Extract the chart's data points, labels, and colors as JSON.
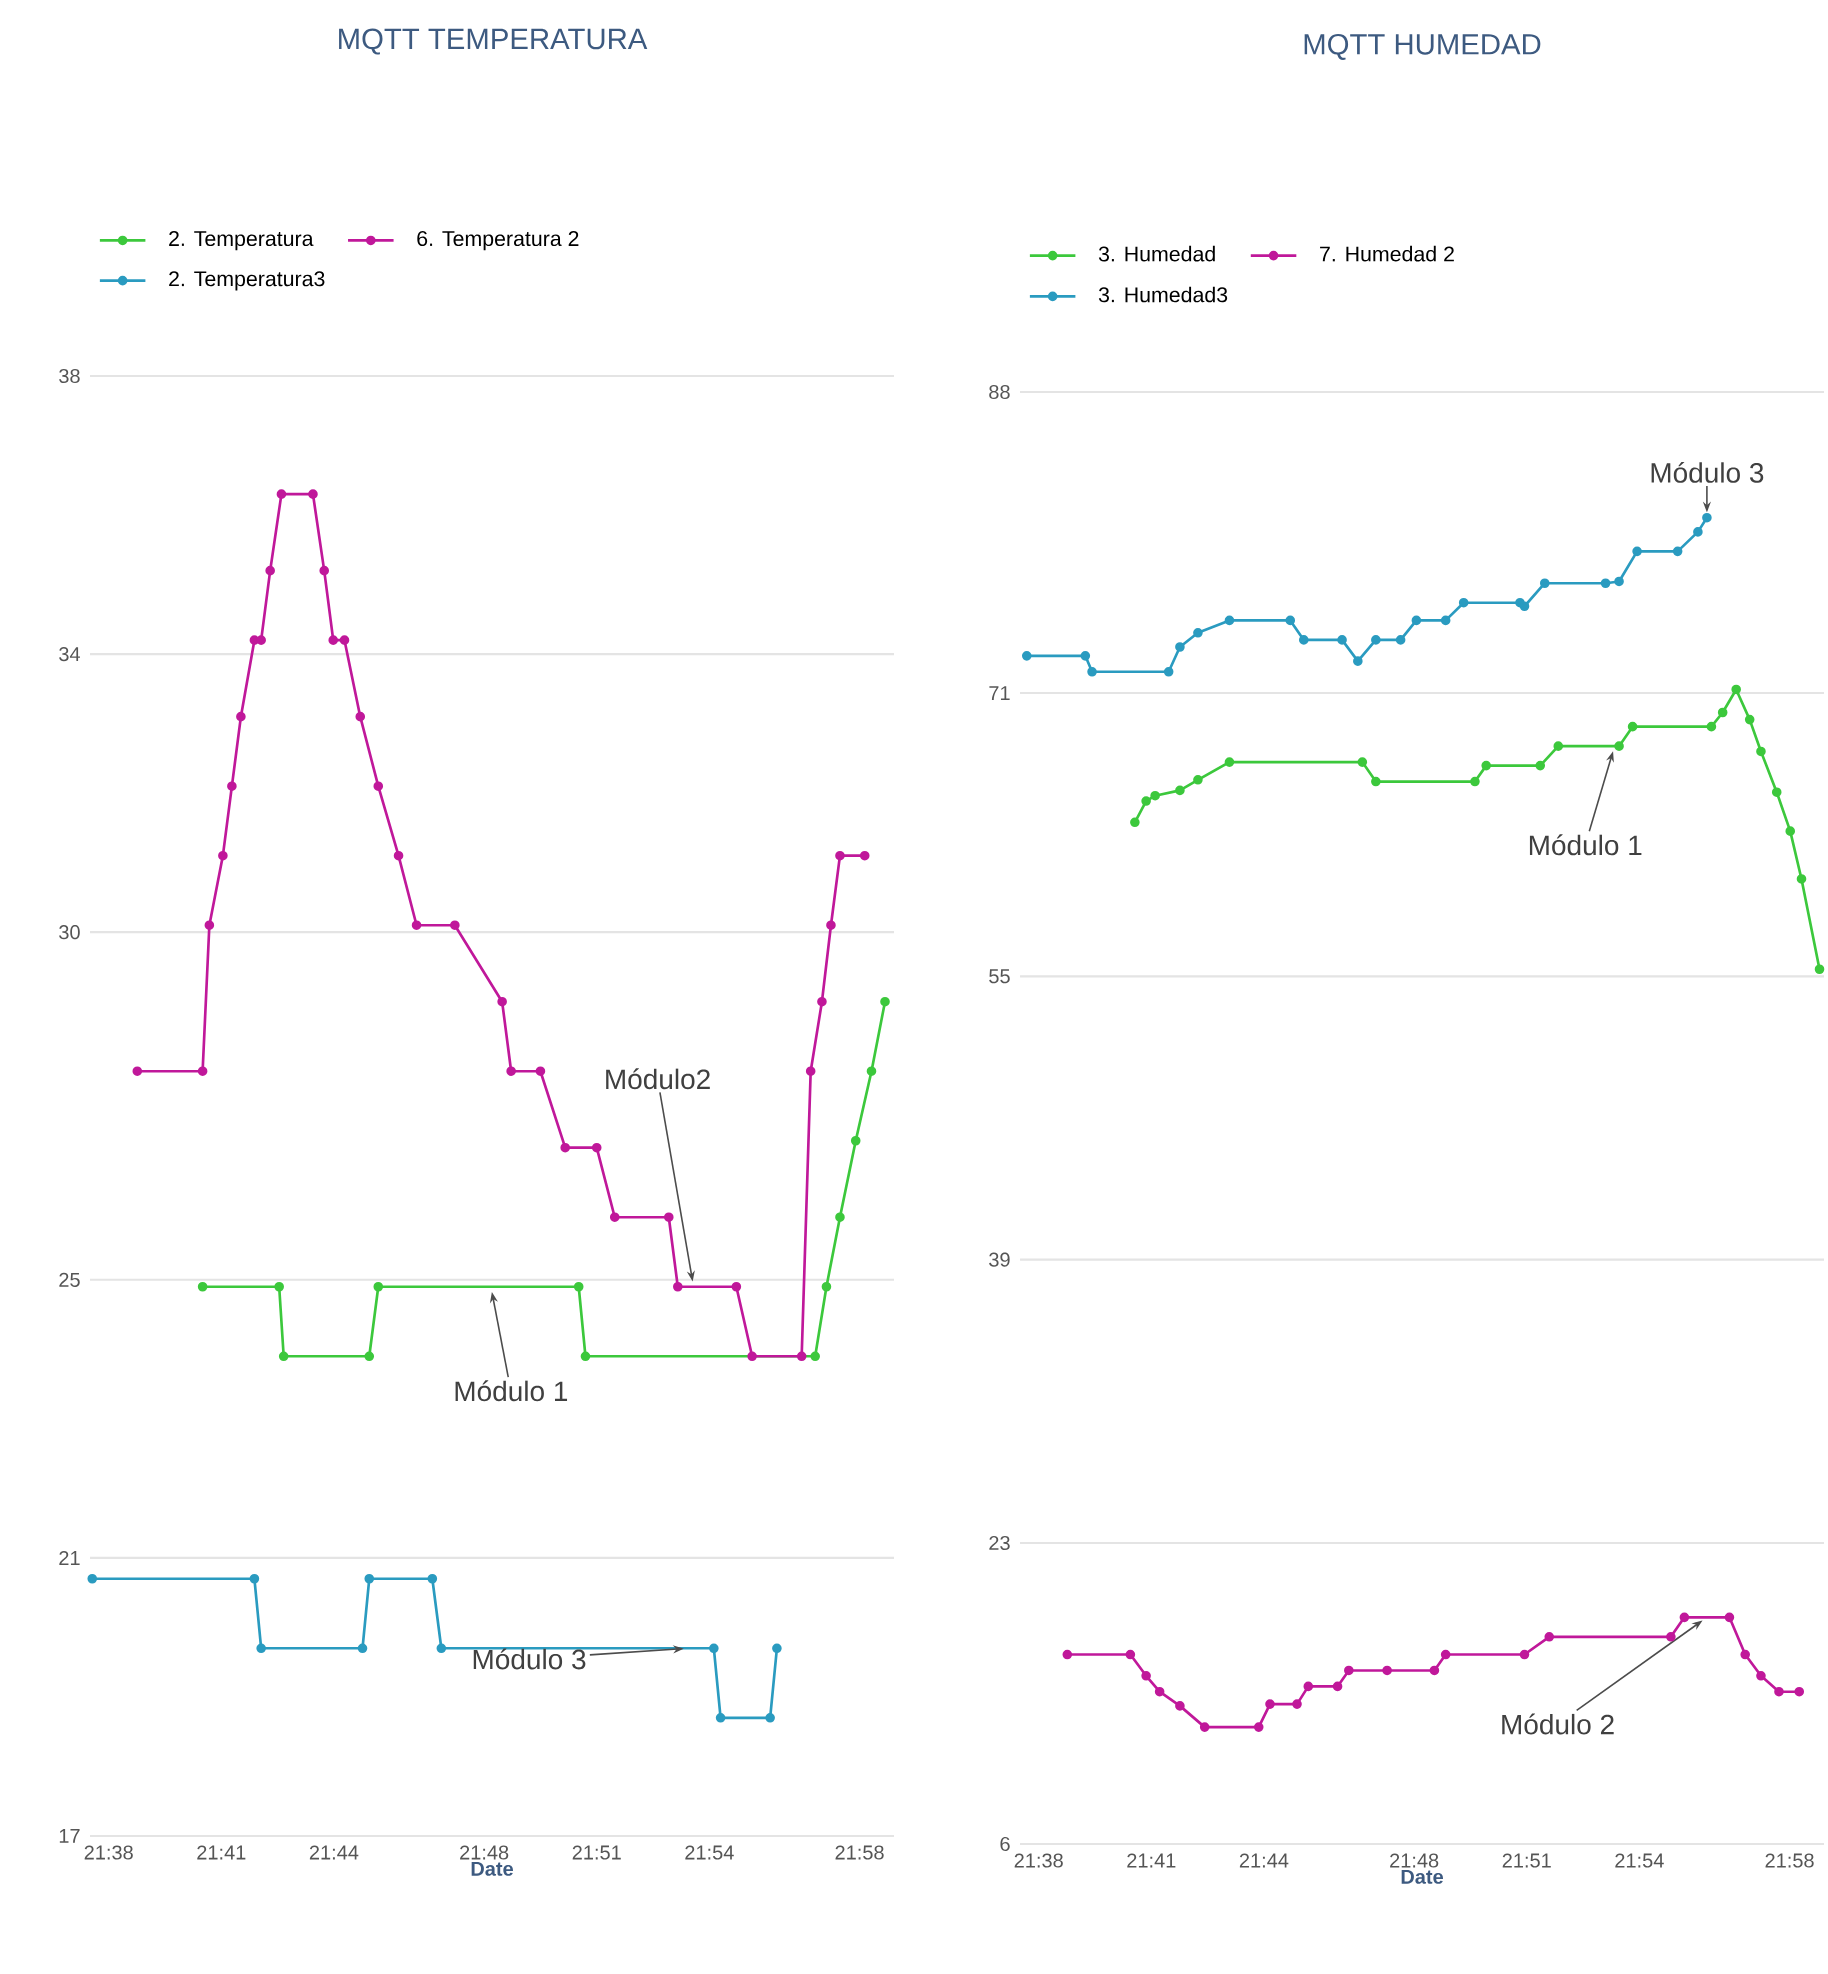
{
  "chart_data": [
    {
      "type": "line",
      "title": "MQTT TEMPERATURA",
      "xlabel": "Date",
      "legend": "top left",
      "grid": "y",
      "marker": "circle",
      "line_style": "solid",
      "xlim": [
        21.625,
        21.982
      ],
      "xticks": [
        {
          "value": 21.6333,
          "label": "21:38"
        },
        {
          "value": 21.6833,
          "label": "21:41"
        },
        {
          "value": 21.7333,
          "label": "21:44"
        },
        {
          "value": 21.8,
          "label": "21:48"
        },
        {
          "value": 21.85,
          "label": "21:51"
        },
        {
          "value": 21.9,
          "label": "21:54"
        },
        {
          "value": 21.9667,
          "label": "21:58"
        }
      ],
      "ylim": [
        17,
        38
      ],
      "yticks": [
        17,
        21,
        25,
        30,
        34,
        38
      ],
      "series": [
        {
          "name": "2. Temperatura",
          "color": "#3cc83c",
          "x": [
            21.675,
            21.709,
            21.711,
            21.749,
            21.753,
            21.842,
            21.845,
            21.947,
            21.952,
            21.958,
            21.965,
            21.972,
            21.978
          ],
          "values": [
            24.9,
            24.9,
            23.9,
            23.9,
            24.9,
            24.9,
            23.9,
            23.9,
            24.9,
            25.9,
            27.0,
            28.0,
            29.0
          ]
        },
        {
          "name": "6. Temperatura 2",
          "color": "#c0189a",
          "x": [
            21.646,
            21.675,
            21.678,
            21.684,
            21.688,
            21.692,
            21.698,
            21.701,
            21.705,
            21.71,
            21.724,
            21.729,
            21.733,
            21.738,
            21.745,
            21.753,
            21.762,
            21.77,
            21.787,
            21.808,
            21.812,
            21.825,
            21.836,
            21.85,
            21.858,
            21.882,
            21.886,
            21.912,
            21.919,
            21.941,
            21.945,
            21.95,
            21.954,
            21.958,
            21.969
          ],
          "values": [
            28.0,
            28.0,
            30.1,
            31.1,
            32.1,
            33.1,
            34.2,
            34.2,
            35.2,
            36.3,
            36.3,
            35.2,
            34.2,
            34.2,
            33.1,
            32.1,
            31.1,
            30.1,
            30.1,
            29.0,
            28.0,
            28.0,
            26.9,
            26.9,
            25.9,
            25.9,
            24.9,
            24.9,
            23.9,
            23.9,
            28.0,
            29.0,
            30.1,
            31.1,
            31.1
          ]
        },
        {
          "name": "2. Temperatura3",
          "color": "#2a9bc0",
          "x": [
            21.626,
            21.698,
            21.701,
            21.746,
            21.749,
            21.777,
            21.781,
            21.902,
            21.905,
            21.927,
            21.93
          ],
          "values": [
            20.7,
            20.7,
            19.7,
            19.7,
            20.7,
            20.7,
            19.7,
            19.7,
            18.7,
            18.7,
            19.7
          ]
        }
      ],
      "annotations": [
        {
          "text": "Módulo2",
          "x": 21.893,
          "y": 24.9
        },
        {
          "text": "Módulo 1",
          "x": 21.803,
          "y": 24.9
        },
        {
          "text": "Módulo 3",
          "x": 21.891,
          "y": 19.7
        }
      ]
    },
    {
      "type": "line",
      "title": "MQTT HUMEDAD",
      "xlabel": "Date",
      "legend": "top left",
      "grid": "y",
      "marker": "circle",
      "line_style": "solid",
      "xlim": [
        21.625,
        21.982
      ],
      "xticks": [
        {
          "value": 21.6333,
          "label": "21:38"
        },
        {
          "value": 21.6833,
          "label": "21:41"
        },
        {
          "value": 21.7333,
          "label": "21:44"
        },
        {
          "value": 21.8,
          "label": "21:48"
        },
        {
          "value": 21.85,
          "label": "21:51"
        },
        {
          "value": 21.9,
          "label": "21:54"
        },
        {
          "value": 21.9667,
          "label": "21:58"
        }
      ],
      "ylim": [
        6,
        88
      ],
      "yticks": [
        6,
        23,
        39,
        55,
        71,
        88
      ],
      "series": [
        {
          "name": "3. Humedad",
          "color": "#3cc83c",
          "x": [
            21.676,
            21.681,
            21.685,
            21.696,
            21.704,
            21.718,
            21.777,
            21.783,
            21.827,
            21.832,
            21.856,
            21.864,
            21.891,
            21.897,
            21.932,
            21.937,
            21.943,
            21.949,
            21.954,
            21.961,
            21.967,
            21.972,
            21.98
          ],
          "values": [
            63.7,
            64.9,
            65.2,
            65.5,
            66.1,
            67.1,
            67.1,
            66.0,
            66.0,
            66.9,
            66.9,
            68.0,
            68.0,
            69.1,
            69.1,
            69.9,
            71.2,
            69.5,
            67.7,
            65.4,
            63.2,
            60.5,
            55.4
          ]
        },
        {
          "name": "7. Humedad 2",
          "color": "#c0189a",
          "x": [
            21.646,
            21.674,
            21.681,
            21.687,
            21.696,
            21.707,
            21.731,
            21.736,
            21.748,
            21.753,
            21.766,
            21.771,
            21.788,
            21.809,
            21.814,
            21.849,
            21.86,
            21.914,
            21.92,
            21.94,
            21.947,
            21.954,
            21.962,
            21.971
          ],
          "values": [
            16.7,
            16.7,
            15.5,
            14.6,
            13.8,
            12.6,
            12.6,
            13.9,
            13.9,
            14.9,
            14.9,
            15.8,
            15.8,
            15.8,
            16.7,
            16.7,
            17.7,
            17.7,
            18.8,
            18.8,
            16.7,
            15.5,
            14.6,
            14.6
          ]
        },
        {
          "name": "3. Humedad3",
          "color": "#2a9bc0",
          "x": [
            21.628,
            21.654,
            21.657,
            21.691,
            21.696,
            21.704,
            21.718,
            21.745,
            21.751,
            21.768,
            21.775,
            21.783,
            21.794,
            21.801,
            21.814,
            21.822,
            21.847,
            21.849,
            21.858,
            21.885,
            21.891,
            21.899,
            21.917,
            21.926,
            21.93
          ],
          "values": [
            73.1,
            73.1,
            72.2,
            72.2,
            73.6,
            74.4,
            75.1,
            75.1,
            74.0,
            74.0,
            72.8,
            74.0,
            74.0,
            75.1,
            75.1,
            76.1,
            76.1,
            75.9,
            77.2,
            77.2,
            77.3,
            79.0,
            79.0,
            80.1,
            80.9
          ]
        }
      ],
      "annotations": [
        {
          "text": "Módulo 3",
          "x": 21.93,
          "y": 80.9
        },
        {
          "text": "Módulo 1",
          "x": 21.889,
          "y": 68.0
        },
        {
          "text": "Módulo 2",
          "x": 21.93,
          "y": 18.8
        }
      ]
    }
  ]
}
